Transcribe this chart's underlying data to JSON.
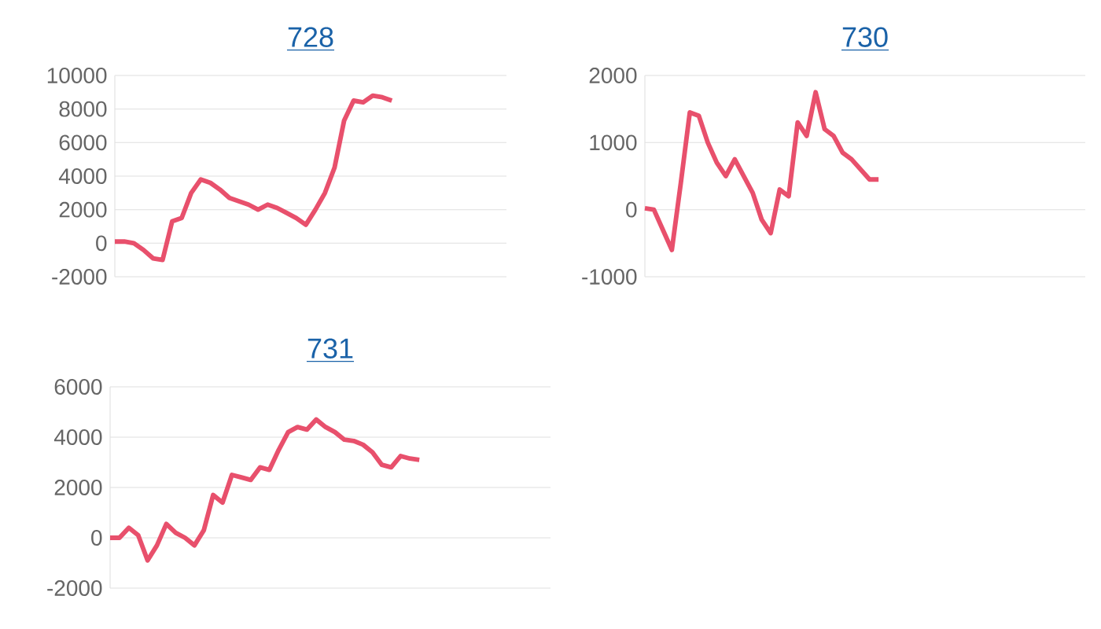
{
  "chart_data": [
    {
      "type": "line",
      "title": "728",
      "color": "#e8506c",
      "ylim": [
        -2000,
        10000
      ],
      "yticks": [
        -2000,
        0,
        2000,
        4000,
        6000,
        8000,
        10000
      ],
      "grid": "y",
      "tick_labels": "y",
      "categories": [
        null,
        null,
        null,
        null,
        null,
        null,
        null,
        null,
        null,
        null,
        null,
        null,
        null,
        null,
        null,
        null,
        null,
        null,
        null,
        null,
        null,
        null,
        null,
        null,
        null,
        null,
        null,
        null,
        null,
        null,
        null,
        null,
        null,
        null,
        null,
        null,
        null,
        null,
        null,
        null,
        null,
        null
      ],
      "values": [
        100,
        100,
        0,
        -400,
        -900,
        -1000,
        1300,
        1500,
        3000,
        3800,
        3600,
        3200,
        2700,
        2500,
        2300,
        2000,
        2300,
        2100,
        1800,
        1500,
        1100,
        2000,
        3000,
        4500,
        7300,
        8500,
        8400,
        8800,
        8700,
        8500,
        null,
        null,
        null,
        null,
        null,
        null,
        null,
        null,
        null,
        null,
        null,
        null
      ]
    },
    {
      "type": "line",
      "title": "730",
      "color": "#e8506c",
      "ylim": [
        -1000,
        2000
      ],
      "yticks": [
        -1000,
        0,
        1000,
        2000
      ],
      "grid": "y",
      "tick_labels": "y",
      "categories": [
        null,
        null,
        null,
        null,
        null,
        null,
        null,
        null,
        null,
        null,
        null,
        null,
        null,
        null,
        null,
        null,
        null,
        null,
        null,
        null,
        null,
        null,
        null,
        null,
        null,
        null,
        null,
        null,
        null,
        null,
        null,
        null,
        null,
        null,
        null,
        null,
        null,
        null,
        null,
        null,
        null,
        null,
        null,
        null,
        null,
        null,
        null,
        null,
        null,
        null
      ],
      "values": [
        20,
        0,
        -300,
        -600,
        400,
        1450,
        1400,
        1000,
        700,
        500,
        750,
        500,
        250,
        -150,
        -350,
        300,
        200,
        1300,
        1100,
        1750,
        1200,
        1100,
        850,
        750,
        600,
        450,
        450,
        null,
        null,
        null,
        null,
        null,
        null,
        null,
        null,
        null,
        null,
        null,
        null,
        null,
        null,
        null,
        null,
        null,
        null,
        null,
        null,
        null,
        null,
        null
      ]
    },
    {
      "type": "line",
      "title": "731",
      "color": "#e8506c",
      "ylim": [
        -2000,
        6000
      ],
      "yticks": [
        -2000,
        0,
        2000,
        4000,
        6000
      ],
      "grid": "y",
      "tick_labels": "y",
      "categories": [
        null,
        null,
        null,
        null,
        null,
        null,
        null,
        null,
        null,
        null,
        null,
        null,
        null,
        null,
        null,
        null,
        null,
        null,
        null,
        null,
        null,
        null,
        null,
        null,
        null,
        null,
        null,
        null,
        null,
        null,
        null,
        null,
        null,
        null,
        null,
        null,
        null,
        null,
        null,
        null,
        null,
        null,
        null,
        null,
        null,
        null,
        null,
        null
      ],
      "values": [
        0,
        0,
        400,
        100,
        -900,
        -300,
        550,
        200,
        0,
        -300,
        300,
        1700,
        1400,
        2500,
        2400,
        2300,
        2800,
        2700,
        3500,
        4200,
        4400,
        4300,
        4700,
        4400,
        4200,
        3900,
        3850,
        3700,
        3400,
        2900,
        2800,
        3250,
        3150,
        3100,
        null,
        null,
        null,
        null,
        null,
        null,
        null,
        null,
        null,
        null,
        null,
        null,
        null,
        null
      ]
    }
  ]
}
